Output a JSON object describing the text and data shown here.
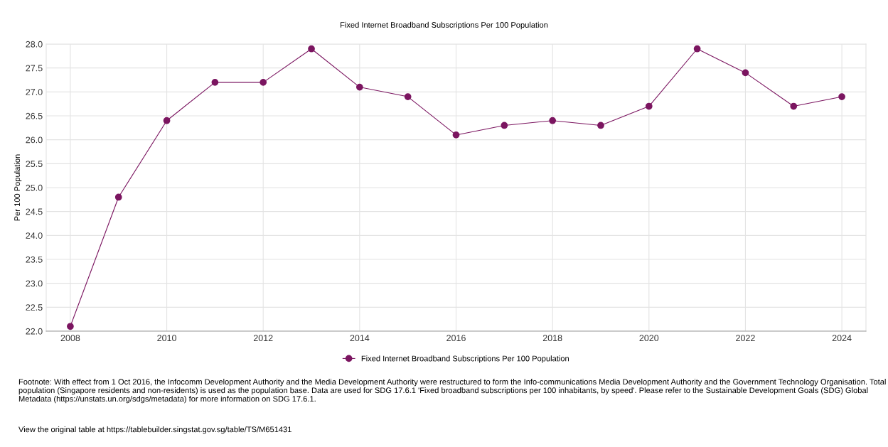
{
  "chart_data": {
    "type": "line",
    "title": "Fixed Internet Broadband Subscriptions Per 100 Population",
    "ylabel": "Per 100 Population",
    "x": [
      2008,
      2009,
      2010,
      2011,
      2012,
      2013,
      2014,
      2015,
      2016,
      2017,
      2018,
      2019,
      2020,
      2021,
      2022,
      2023,
      2024
    ],
    "series": [
      {
        "name": "Fixed Internet Broadband Subscriptions Per 100 Population",
        "color": "#7b1560",
        "values": [
          22.1,
          24.8,
          26.4,
          27.2,
          27.2,
          27.9,
          27.1,
          26.9,
          26.1,
          26.3,
          26.4,
          26.3,
          26.7,
          27.9,
          27.4,
          26.7,
          26.9
        ]
      }
    ],
    "xlim": [
      2007.5,
      2024.5
    ],
    "xticks": [
      2008,
      2010,
      2012,
      2014,
      2016,
      2018,
      2020,
      2022,
      2024
    ],
    "ylim": [
      22.0,
      28.0
    ],
    "yticks": [
      {
        "value": 22.0,
        "label": "22.0"
      },
      {
        "value": 22.5,
        "label": "22.5"
      },
      {
        "value": 23.0,
        "label": "23.0"
      },
      {
        "value": 23.5,
        "label": "23.5"
      },
      {
        "value": 24.0,
        "label": "24.0"
      },
      {
        "value": 24.5,
        "label": "24.5"
      },
      {
        "value": 25.0,
        "label": "25.0"
      },
      {
        "value": 25.5,
        "label": "25.5"
      },
      {
        "value": 26.0,
        "label": "26.0"
      },
      {
        "value": 26.5,
        "label": "26.5"
      },
      {
        "value": 27.0,
        "label": "27.0"
      },
      {
        "value": 27.5,
        "label": "27.5"
      },
      {
        "value": 28.0,
        "label": "28.0"
      }
    ],
    "grid": true,
    "legend": "bottom",
    "marker": "circle",
    "line_style": "solid",
    "annotations": [
      "Footnote: With effect from 1 Oct 2016, the Infocomm Development Authority and the Media Development Authority were restructured to form the Info-communications Media Development Authority and the Government Technology Organisation. Total population (Singapore residents and non-residents) is used as the population base. Data are used for SDG 17.6.1 'Fixed broadband subscriptions per 100 inhabitants, by speed'. Please refer to the Sustainable Development Goals (SDG) Global Metadata (https://unstats.un.org/sdgs/metadata) for more information on SDG 17.6.1.",
      "View the original table at https://tablebuilder.singstat.gov.sg/table/TS/M651431"
    ]
  }
}
